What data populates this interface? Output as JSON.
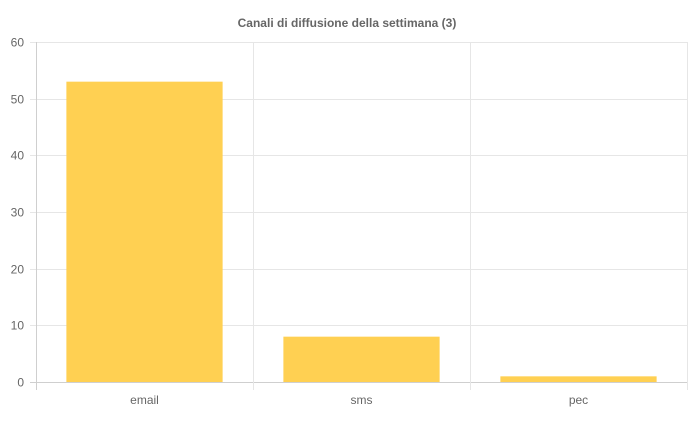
{
  "chart_data": {
    "type": "bar",
    "title": "Canali di diffusione della settimana (3)",
    "categories": [
      "email",
      "sms",
      "pec"
    ],
    "series": [
      {
        "values": [
          53,
          8,
          1
        ]
      }
    ],
    "ylim": [
      0,
      60
    ],
    "yticks": [
      0,
      10,
      20,
      30,
      40,
      50,
      60
    ],
    "grid": true,
    "legend": "none",
    "colors": {
      "bar": "#ffd052",
      "grid": "#e6e6e6",
      "text": "#666666"
    }
  }
}
